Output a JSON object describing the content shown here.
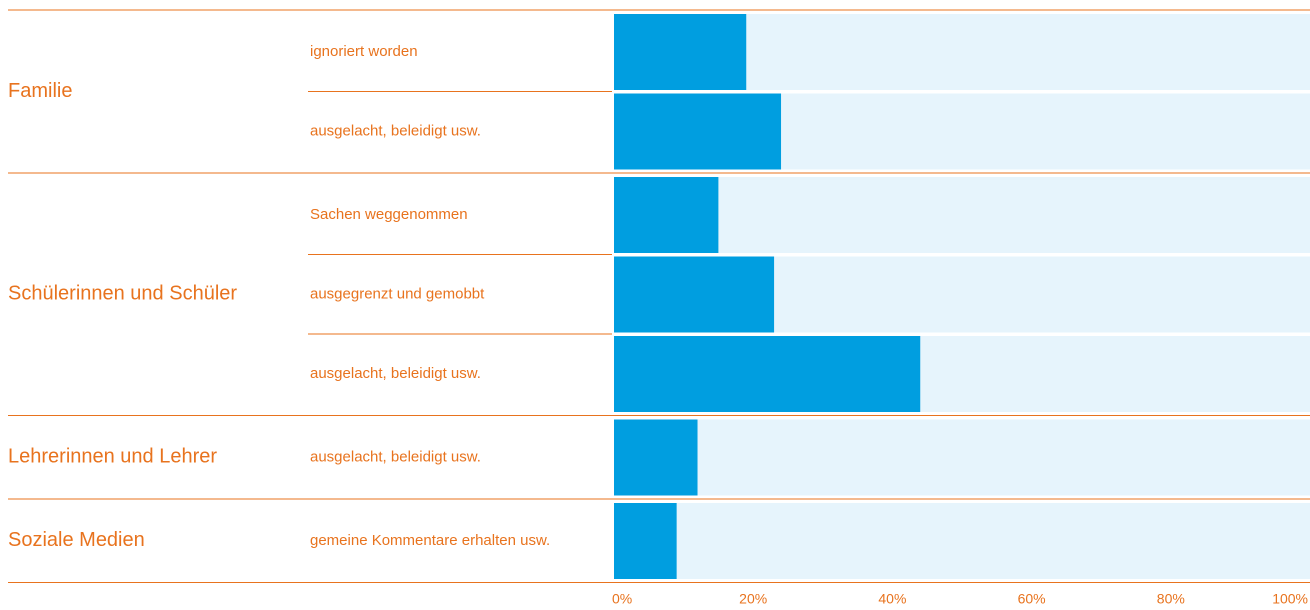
{
  "chart_data": {
    "type": "bar",
    "color": "#009ee0",
    "track_color": "#e6f4fc",
    "groups": [
      {
        "name": "Familie",
        "categories": [
          "ignoriert worden",
          "ausgelacht, beleidigt usw."
        ],
        "values": [
          19,
          24
        ]
      },
      {
        "name": "Schülerinnen und Schüler",
        "categories": [
          "Sachen weggenommen",
          "ausgegrenzt und gemobbt",
          "ausgelacht, beleidigt usw."
        ],
        "values": [
          15,
          23,
          44
        ]
      },
      {
        "name": "Lehrerinnen und Lehrer",
        "categories": [
          "ausgelacht, beleidigt usw."
        ],
        "values": [
          12
        ]
      },
      {
        "name": "Soziale Medien",
        "categories": [
          "gemeine Kommentare erhalten usw."
        ],
        "values": [
          9
        ]
      }
    ],
    "xlim": [
      0,
      100
    ],
    "xticks": [
      {
        "value": 0,
        "label": "0%"
      },
      {
        "value": 20,
        "label": "20%"
      },
      {
        "value": 40,
        "label": "40%"
      },
      {
        "value": 60,
        "label": "60%"
      },
      {
        "value": 80,
        "label": "80%"
      },
      {
        "value": 100,
        "label": "100%"
      }
    ]
  }
}
